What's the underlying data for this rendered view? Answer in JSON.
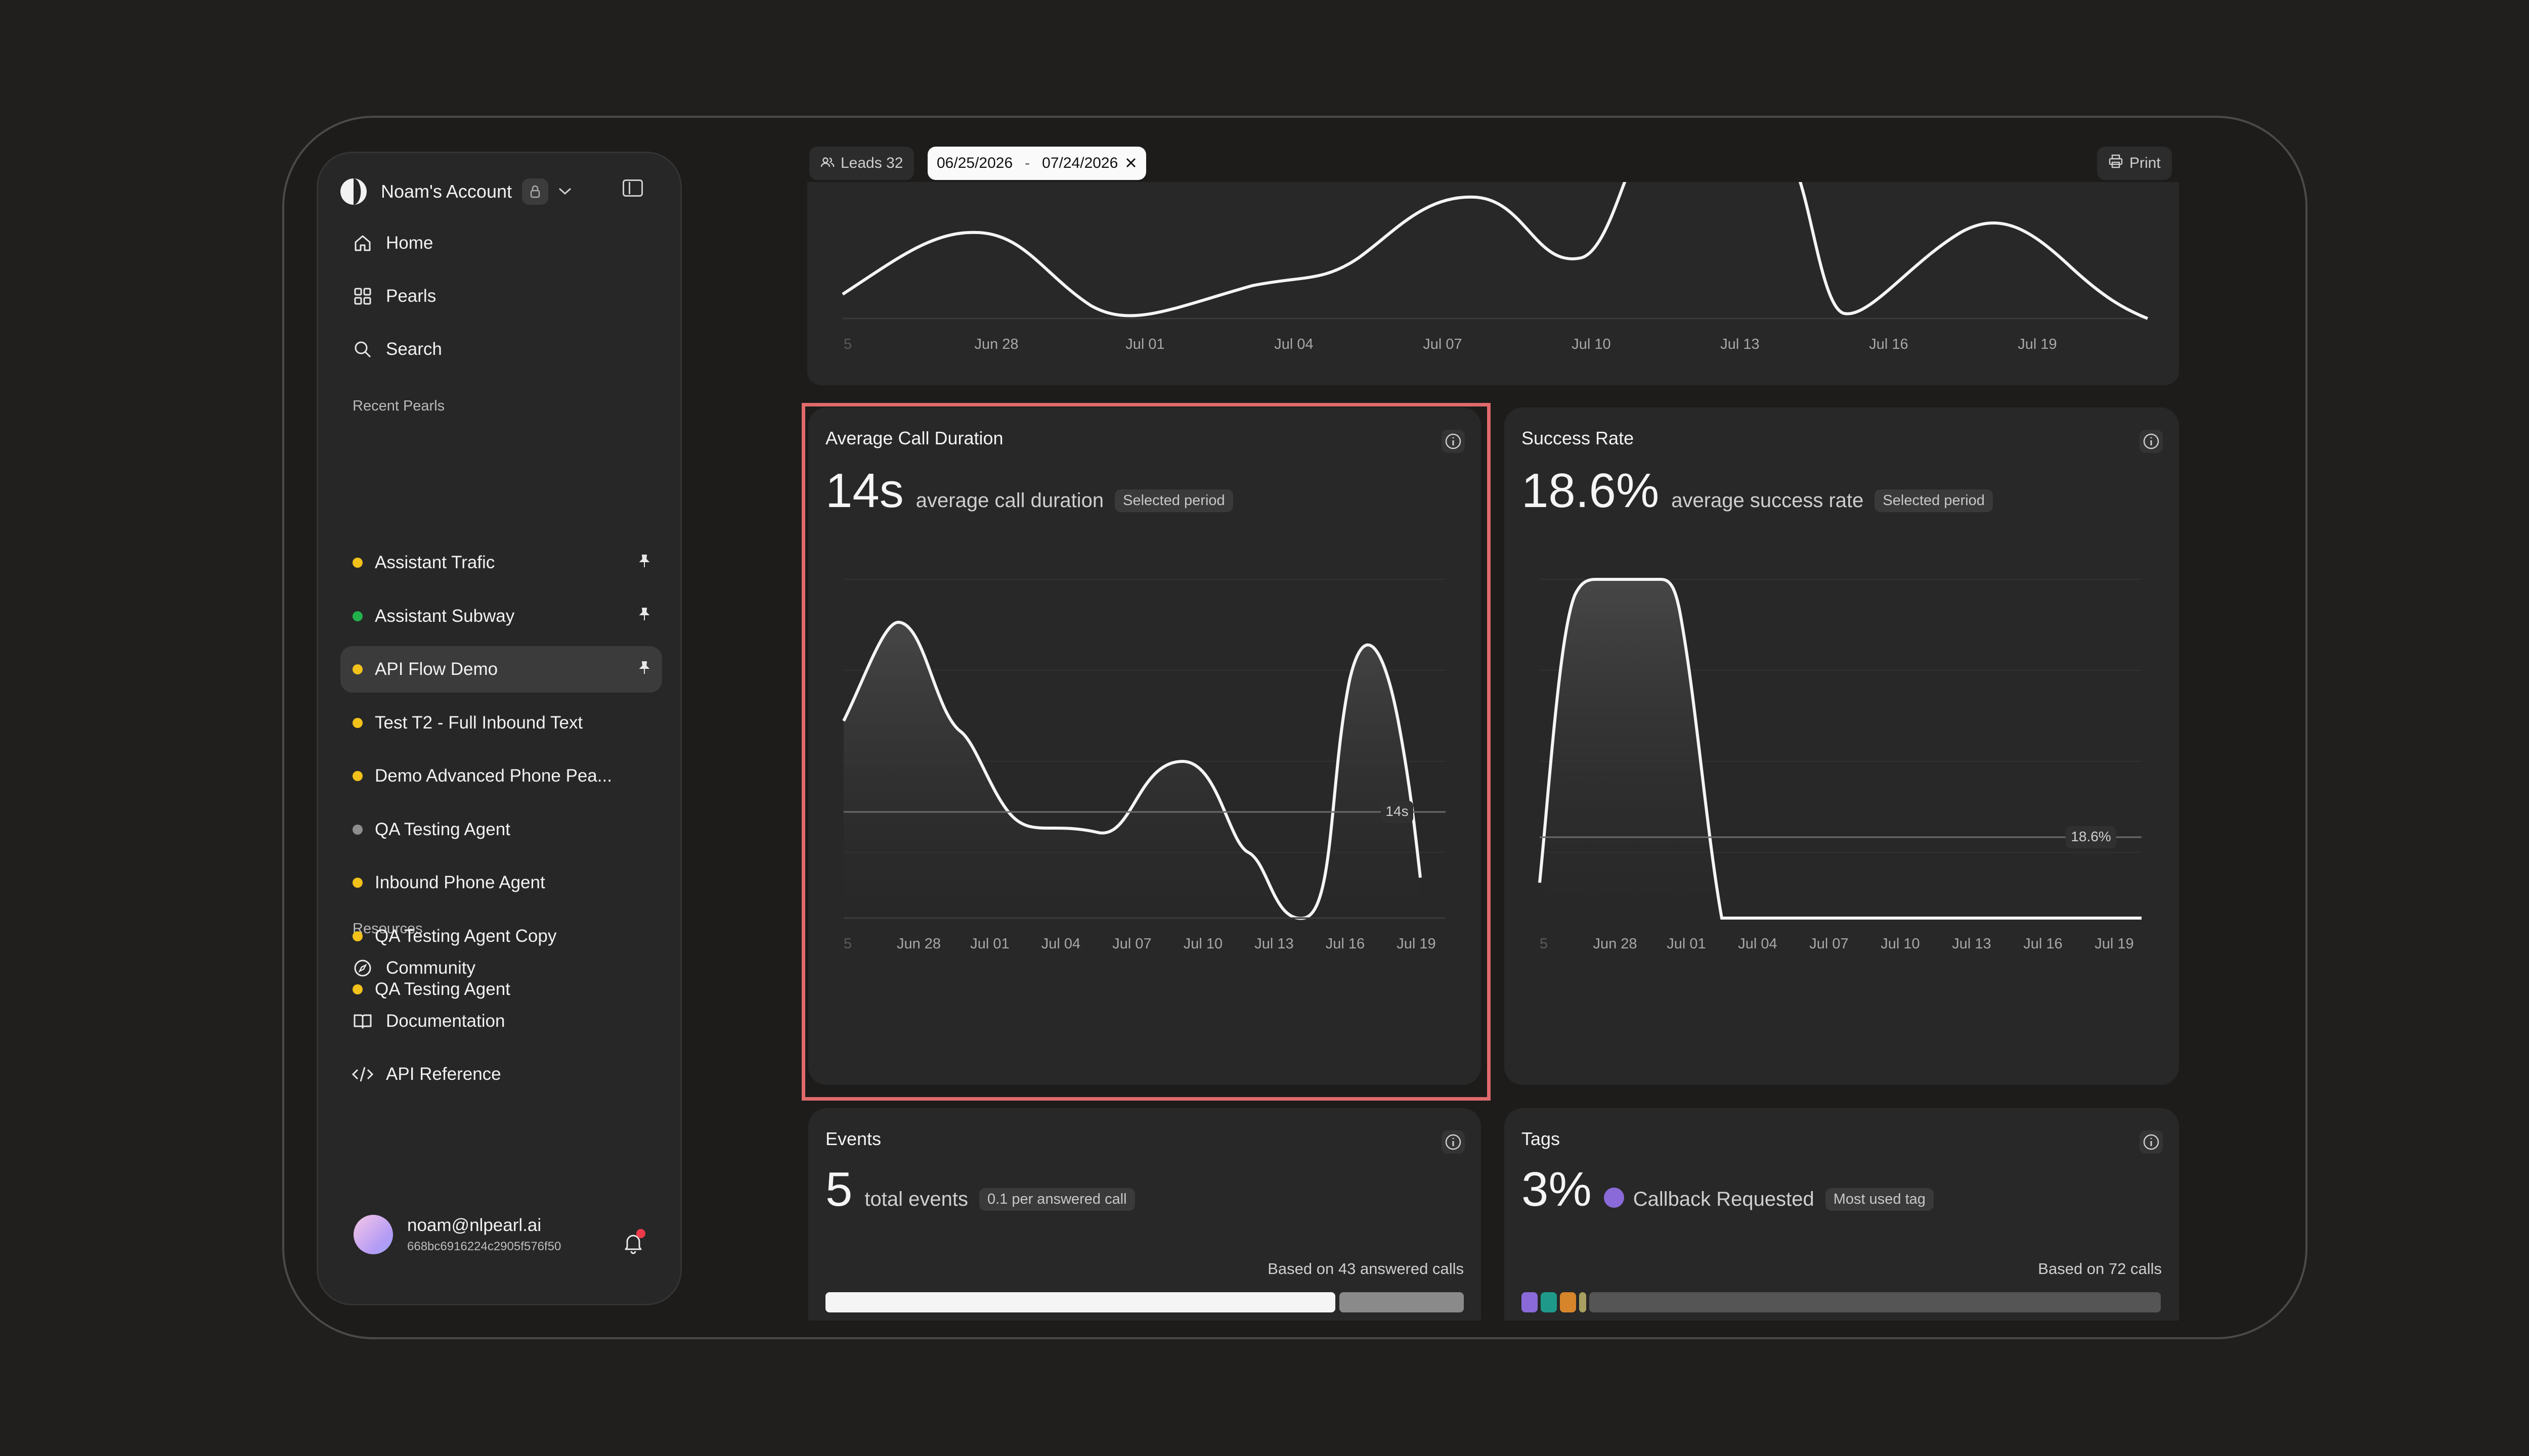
{
  "account": {
    "name": "Noam's Account"
  },
  "nav": {
    "main": [
      {
        "label": "Home",
        "icon": "home-icon"
      },
      {
        "label": "Pearls",
        "icon": "grid-icon"
      },
      {
        "label": "Search",
        "icon": "search-icon"
      }
    ],
    "recent_heading": "Recent Pearls",
    "recent": [
      {
        "label": "Assistant Trafic",
        "dot": "#f2c21b",
        "pinned": true
      },
      {
        "label": "Assistant Subway",
        "dot": "#22b04b",
        "pinned": true
      },
      {
        "label": "API Flow Demo",
        "dot": "#f2c21b",
        "pinned": true,
        "active": true
      },
      {
        "label": "Test T2 - Full Inbound Text",
        "dot": "#f2c21b"
      },
      {
        "label": "Demo Advanced Phone Pea...",
        "dot": "#f2c21b"
      },
      {
        "label": "QA Testing Agent",
        "dot": "#8e8e8e"
      },
      {
        "label": "Inbound Phone Agent",
        "dot": "#f2c21b"
      },
      {
        "label": "QA Testing Agent Copy",
        "dot": "#f2c21b"
      },
      {
        "label": "QA Testing Agent",
        "dot": "#f2c21b"
      }
    ],
    "resources_heading": "Resources",
    "resources": [
      {
        "label": "Community",
        "icon": "compass-icon"
      },
      {
        "label": "Documentation",
        "icon": "book-icon"
      },
      {
        "label": "API Reference",
        "icon": "code-icon"
      }
    ]
  },
  "user": {
    "email": "noam@nlpearl.ai",
    "id": "668bc6916224c2905f576f50"
  },
  "toolbar": {
    "leads_label": "Leads 32",
    "date_start": "06/25/2026",
    "date_sep": "-",
    "date_end": "07/24/2026",
    "print_label": "Print"
  },
  "top_chart": {
    "x_ticks": [
      "5",
      "Jun 28",
      "Jul 01",
      "Jul 04",
      "Jul 07",
      "Jul 10",
      "Jul 13",
      "Jul 16",
      "Jul 19"
    ]
  },
  "cards": {
    "duration": {
      "title": "Average Call Duration",
      "value": "14s",
      "caption": "average call duration",
      "pill": "Selected period",
      "avg_label": "14s"
    },
    "success": {
      "title": "Success Rate",
      "value": "18.6%",
      "caption": "average success rate",
      "pill": "Selected period",
      "avg_label": "18.6%"
    },
    "events": {
      "title": "Events",
      "value": "5",
      "caption": "total events",
      "pill": "0.1 per answered call",
      "based_on": "Based on 43 answered calls"
    },
    "tags": {
      "title": "Tags",
      "value": "3%",
      "caption": "Callback Requested",
      "pill": "Most used tag",
      "based_on": "Based on 72 calls",
      "tag_color": "#8a6ad8"
    }
  },
  "chart_data": [
    {
      "type": "line",
      "title": "Average Call Duration",
      "x": [
        "5",
        "Jun 28",
        "Jul 01",
        "Jul 04",
        "Jul 07",
        "Jul 10",
        "Jul 13",
        "Jul 16",
        "Jul 19"
      ],
      "y_unit": "s",
      "average": 14,
      "average_label": "14s"
    },
    {
      "type": "area",
      "title": "Success Rate",
      "x": [
        "5",
        "Jun 28",
        "Jul 01",
        "Jul 04",
        "Jul 07",
        "Jul 10",
        "Jul 13",
        "Jul 16",
        "Jul 19"
      ],
      "y_unit": "%",
      "average": 18.6,
      "average_label": "18.6%"
    }
  ]
}
